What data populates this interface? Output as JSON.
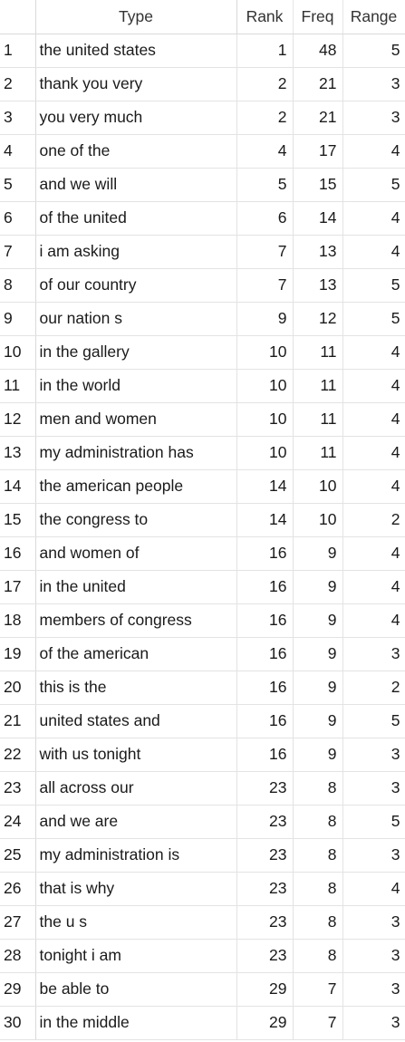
{
  "headers": {
    "index": "",
    "type": "Type",
    "rank": "Rank",
    "freq": "Freq",
    "range": "Range"
  },
  "rows": [
    {
      "idx": "1",
      "type": "the united states",
      "rank": "1",
      "freq": "48",
      "range": "5"
    },
    {
      "idx": "2",
      "type": "thank you very",
      "rank": "2",
      "freq": "21",
      "range": "3"
    },
    {
      "idx": "3",
      "type": "you very much",
      "rank": "2",
      "freq": "21",
      "range": "3"
    },
    {
      "idx": "4",
      "type": "one of the",
      "rank": "4",
      "freq": "17",
      "range": "4"
    },
    {
      "idx": "5",
      "type": "and we will",
      "rank": "5",
      "freq": "15",
      "range": "5"
    },
    {
      "idx": "6",
      "type": "of the united",
      "rank": "6",
      "freq": "14",
      "range": "4"
    },
    {
      "idx": "7",
      "type": "i am asking",
      "rank": "7",
      "freq": "13",
      "range": "4"
    },
    {
      "idx": "8",
      "type": "of our country",
      "rank": "7",
      "freq": "13",
      "range": "5"
    },
    {
      "idx": "9",
      "type": "our nation s",
      "rank": "9",
      "freq": "12",
      "range": "5"
    },
    {
      "idx": "10",
      "type": "in the gallery",
      "rank": "10",
      "freq": "11",
      "range": "4"
    },
    {
      "idx": "11",
      "type": "in the world",
      "rank": "10",
      "freq": "11",
      "range": "4"
    },
    {
      "idx": "12",
      "type": "men and women",
      "rank": "10",
      "freq": "11",
      "range": "4"
    },
    {
      "idx": "13",
      "type": "my administration has",
      "rank": "10",
      "freq": "11",
      "range": "4"
    },
    {
      "idx": "14",
      "type": "the american people",
      "rank": "14",
      "freq": "10",
      "range": "4"
    },
    {
      "idx": "15",
      "type": "the congress to",
      "rank": "14",
      "freq": "10",
      "range": "2"
    },
    {
      "idx": "16",
      "type": "and women of",
      "rank": "16",
      "freq": "9",
      "range": "4"
    },
    {
      "idx": "17",
      "type": "in the united",
      "rank": "16",
      "freq": "9",
      "range": "4"
    },
    {
      "idx": "18",
      "type": "members of congress",
      "rank": "16",
      "freq": "9",
      "range": "4"
    },
    {
      "idx": "19",
      "type": "of the american",
      "rank": "16",
      "freq": "9",
      "range": "3"
    },
    {
      "idx": "20",
      "type": "this is the",
      "rank": "16",
      "freq": "9",
      "range": "2"
    },
    {
      "idx": "21",
      "type": "united states and",
      "rank": "16",
      "freq": "9",
      "range": "5"
    },
    {
      "idx": "22",
      "type": "with us tonight",
      "rank": "16",
      "freq": "9",
      "range": "3"
    },
    {
      "idx": "23",
      "type": "all across our",
      "rank": "23",
      "freq": "8",
      "range": "3"
    },
    {
      "idx": "24",
      "type": "and we are",
      "rank": "23",
      "freq": "8",
      "range": "5"
    },
    {
      "idx": "25",
      "type": "my administration is",
      "rank": "23",
      "freq": "8",
      "range": "3"
    },
    {
      "idx": "26",
      "type": "that is why",
      "rank": "23",
      "freq": "8",
      "range": "4"
    },
    {
      "idx": "27",
      "type": "the u s",
      "rank": "23",
      "freq": "8",
      "range": "3"
    },
    {
      "idx": "28",
      "type": "tonight i am",
      "rank": "23",
      "freq": "8",
      "range": "3"
    },
    {
      "idx": "29",
      "type": "be able to",
      "rank": "29",
      "freq": "7",
      "range": "3"
    },
    {
      "idx": "30",
      "type": "in the middle",
      "rank": "29",
      "freq": "7",
      "range": "3"
    }
  ]
}
